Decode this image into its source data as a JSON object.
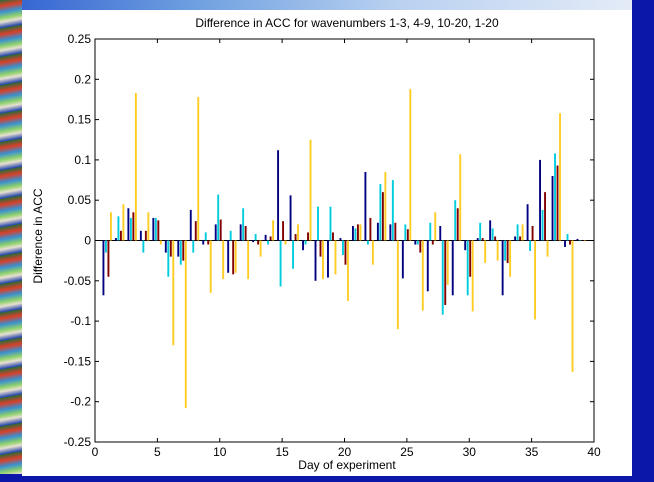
{
  "chart_data": {
    "type": "bar",
    "title": "Difference in ACC for wavenumbers 1-3, 4-9, 10-20, 1-20",
    "xlabel": "Day of experiment",
    "ylabel": "Difference in ACC",
    "xlim": [
      0,
      40
    ],
    "ylim": [
      -0.25,
      0.25
    ],
    "xticks": [
      0,
      5,
      10,
      15,
      20,
      25,
      30,
      35,
      40
    ],
    "yticks": [
      -0.25,
      -0.2,
      -0.15,
      -0.1,
      -0.05,
      0,
      0.05,
      0.1,
      0.15,
      0.2,
      0.25
    ],
    "xtick_labels": [
      "0",
      "5",
      "10",
      "15",
      "20",
      "25",
      "30",
      "35",
      "40"
    ],
    "ytick_labels": [
      "-0.25",
      "-0.2",
      "-0.15",
      "-0.1",
      "-0.05",
      "0",
      "0.05",
      "0.1",
      "0.15",
      "0.2",
      "0.25"
    ],
    "x": [
      1,
      2,
      3,
      4,
      5,
      6,
      7,
      8,
      9,
      10,
      11,
      12,
      13,
      14,
      15,
      16,
      17,
      18,
      19,
      20,
      21,
      22,
      23,
      24,
      25,
      26,
      27,
      28,
      29,
      30,
      31,
      32,
      33,
      34,
      35,
      36,
      37,
      38,
      39
    ],
    "series": [
      {
        "color": "#000080",
        "values": [
          -0.068,
          0.003,
          0.04,
          0.012,
          0.028,
          -0.015,
          -0.02,
          0.038,
          -0.005,
          0.02,
          -0.04,
          0.02,
          -0.002,
          0.007,
          0.112,
          0.056,
          -0.012,
          -0.05,
          -0.046,
          0.003,
          0.018,
          0.085,
          0.022,
          0.02,
          -0.047,
          -0.005,
          -0.063,
          0.018,
          -0.068,
          -0.012,
          0.003,
          0.025,
          -0.068,
          0.005,
          0.045,
          0.1,
          0.08,
          -0.008,
          0.002
        ]
      },
      {
        "color": "#00CCDD",
        "values": [
          -0.015,
          0.03,
          0.028,
          -0.015,
          0.028,
          -0.045,
          -0.03,
          -0.015,
          0.01,
          0.057,
          0.012,
          0.04,
          0.008,
          -0.005,
          -0.057,
          -0.035,
          -0.005,
          0.042,
          0.042,
          -0.018,
          0.015,
          -0.005,
          0.07,
          0.075,
          0.02,
          -0.005,
          0.022,
          -0.092,
          0.05,
          -0.068,
          0.022,
          0.015,
          -0.025,
          0.02,
          -0.013,
          0.038,
          0.108,
          0.008,
          0
        ]
      },
      {
        "color": "#800000",
        "values": [
          -0.045,
          0.012,
          0.035,
          0.012,
          0.025,
          -0.02,
          -0.025,
          0.024,
          -0.005,
          0.026,
          -0.042,
          0.018,
          -0.005,
          0.005,
          0.024,
          0.008,
          0.01,
          -0.02,
          0.01,
          -0.03,
          0.02,
          0.028,
          0.06,
          0.022,
          0.014,
          -0.015,
          -0.005,
          -0.08,
          0.04,
          -0.045,
          0.003,
          0.005,
          -0.028,
          0.005,
          0.018,
          0.06,
          0.093,
          -0.005,
          0
        ]
      },
      {
        "color": "#FFCC22",
        "values": [
          0.035,
          0.045,
          0.183,
          0.035,
          -0.005,
          -0.13,
          -0.208,
          0.178,
          -0.065,
          -0.048,
          -0.04,
          -0.048,
          -0.02,
          0.025,
          -0.005,
          0.02,
          0.125,
          -0.048,
          -0.042,
          -0.075,
          0.02,
          -0.03,
          0.085,
          -0.11,
          0.188,
          -0.087,
          0.035,
          -0.055,
          0.107,
          -0.088,
          -0.028,
          -0.025,
          -0.045,
          0.02,
          -0.098,
          -0.02,
          0.158,
          -0.163,
          0
        ]
      }
    ]
  }
}
